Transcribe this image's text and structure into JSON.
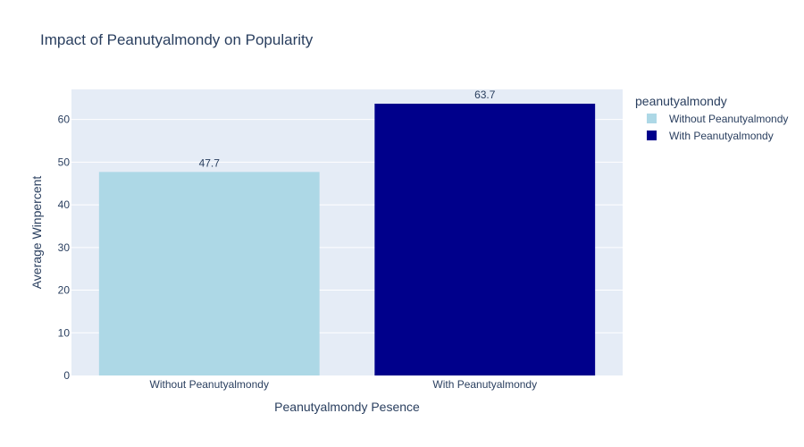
{
  "chart_data": {
    "type": "bar",
    "title": "Impact of Peanutyalmondy on Popularity",
    "xlabel": "Peanutyalmondy Pesence",
    "ylabel": "Average Winpercent",
    "categories": [
      "Without Peanutyalmondy",
      "With Peanutyalmondy"
    ],
    "values": [
      47.7,
      63.7
    ],
    "value_labels": [
      "47.7",
      "63.7"
    ],
    "colors": [
      "#add8e6",
      "#00008b"
    ],
    "ylim": [
      0,
      67.05
    ],
    "yticks": [
      0,
      10,
      20,
      30,
      40,
      50,
      60
    ],
    "grid": true,
    "legend": {
      "title": "peanutyalmondy",
      "placement": "top-right",
      "entries": [
        "Without Peanutyalmondy",
        "With Peanutyalmondy"
      ]
    },
    "plot_background": "#e5ecf6",
    "text_color": "#2a3f5f"
  }
}
